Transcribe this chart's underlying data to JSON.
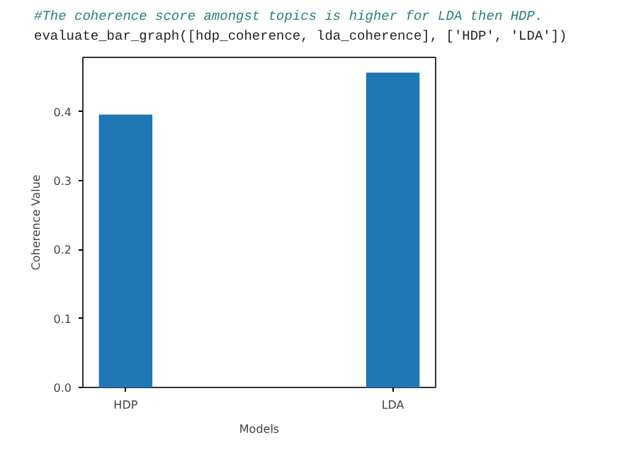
{
  "chart_data": {
    "type": "bar",
    "xlabel": "Models",
    "ylabel": "Coherence Value",
    "categories": [
      "HDP",
      "LDA"
    ],
    "values": [
      0.396,
      0.457
    ],
    "color": "#1f77b4",
    "ylim": [
      0,
      0.479
    ],
    "yticks": [
      {
        "value": 0,
        "label": "0.0"
      },
      0.1,
      0.2,
      0.3,
      0.4
    ],
    "grid": false,
    "annotations": [
      "#The coherence score amongst topics is higher for LDA then HDP.",
      "evaluate_bar_graph([hdp_coherence, lda_coherence], ['HDP', 'LDA'])"
    ]
  }
}
